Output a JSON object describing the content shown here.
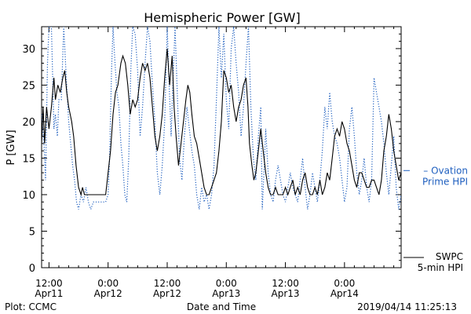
{
  "chart_data": {
    "type": "line",
    "title": "Hemispheric Power [GW]",
    "ylabel": "P [GW]",
    "xlabel": "Date and Time",
    "ylim": [
      0,
      33
    ],
    "yticks": [
      0,
      5,
      10,
      15,
      20,
      25,
      30
    ],
    "xticks": [
      {
        "t": 0,
        "time": "12:00",
        "date": "Apr11"
      },
      {
        "t": 12,
        "time": "0:00",
        "date": "Apr12"
      },
      {
        "t": 24,
        "time": "12:00",
        "date": "Apr12"
      },
      {
        "t": 36,
        "time": "0:00",
        "date": "Apr13"
      },
      {
        "t": 48,
        "time": "12:00",
        "date": "Apr13"
      },
      {
        "t": 60,
        "time": "0:00",
        "date": "Apr14"
      }
    ],
    "xlim": [
      -1.5,
      71.5
    ],
    "grid": false,
    "series": [
      {
        "name": "SWPC 5-min HPI",
        "name_lines": [
          "SWPC",
          "5-min HPI"
        ],
        "color": "#000000",
        "dash": "solid",
        "points": [
          [
            -1.5,
            17
          ],
          [
            -1.2,
            22
          ],
          [
            -0.9,
            17
          ],
          [
            -0.5,
            22
          ],
          [
            0,
            19
          ],
          [
            0.5,
            22
          ],
          [
            1,
            26
          ],
          [
            1.3,
            23
          ],
          [
            1.8,
            25
          ],
          [
            2.3,
            24
          ],
          [
            2.8,
            26
          ],
          [
            3.2,
            27
          ],
          [
            3.6,
            24
          ],
          [
            4,
            22
          ],
          [
            4.6,
            20
          ],
          [
            5,
            18
          ],
          [
            5.5,
            14
          ],
          [
            6,
            11
          ],
          [
            6.5,
            10
          ],
          [
            6.8,
            11
          ],
          [
            7.2,
            10
          ],
          [
            8,
            10
          ],
          [
            9,
            10
          ],
          [
            10,
            10
          ],
          [
            11,
            10
          ],
          [
            11.5,
            10
          ],
          [
            12,
            13
          ],
          [
            12.5,
            16
          ],
          [
            13,
            21
          ],
          [
            13.5,
            24
          ],
          [
            14,
            25
          ],
          [
            14.6,
            28
          ],
          [
            15,
            29
          ],
          [
            15.5,
            28
          ],
          [
            16,
            25
          ],
          [
            16.5,
            21
          ],
          [
            17,
            23
          ],
          [
            17.5,
            22
          ],
          [
            18,
            23
          ],
          [
            18.5,
            26
          ],
          [
            19,
            28
          ],
          [
            19.5,
            27
          ],
          [
            20,
            28
          ],
          [
            20.5,
            26
          ],
          [
            21,
            22
          ],
          [
            21.5,
            18
          ],
          [
            22,
            16
          ],
          [
            22.5,
            18
          ],
          [
            23,
            21
          ],
          [
            23.5,
            26
          ],
          [
            24,
            30
          ],
          [
            24.5,
            25
          ],
          [
            25,
            29
          ],
          [
            25.4,
            22
          ],
          [
            25.8,
            18
          ],
          [
            26.3,
            14
          ],
          [
            26.8,
            17
          ],
          [
            27.3,
            20
          ],
          [
            27.8,
            23
          ],
          [
            28.2,
            25
          ],
          [
            28.6,
            24
          ],
          [
            29,
            21
          ],
          [
            29.5,
            18
          ],
          [
            30,
            17
          ],
          [
            30.5,
            15
          ],
          [
            31,
            13
          ],
          [
            31.5,
            11
          ],
          [
            32,
            10
          ],
          [
            32.5,
            10
          ],
          [
            33,
            11
          ],
          [
            33.5,
            12
          ],
          [
            34,
            13
          ],
          [
            34.5,
            16
          ],
          [
            35,
            20
          ],
          [
            35.5,
            27
          ],
          [
            36,
            26
          ],
          [
            36.5,
            24
          ],
          [
            37,
            25
          ],
          [
            37.5,
            22
          ],
          [
            38,
            20
          ],
          [
            38.5,
            22
          ],
          [
            39,
            23
          ],
          [
            39.5,
            25
          ],
          [
            40,
            26
          ],
          [
            40.4,
            22
          ],
          [
            40.7,
            17
          ],
          [
            41.2,
            14
          ],
          [
            41.6,
            12
          ],
          [
            42,
            13
          ],
          [
            42.5,
            16
          ],
          [
            43,
            19
          ],
          [
            43.5,
            16
          ],
          [
            44,
            13
          ],
          [
            44.5,
            11
          ],
          [
            45,
            10
          ],
          [
            45.5,
            10
          ],
          [
            46,
            11
          ],
          [
            46.5,
            10
          ],
          [
            47,
            10
          ],
          [
            47.5,
            10
          ],
          [
            48,
            11
          ],
          [
            48.5,
            10
          ],
          [
            49,
            11
          ],
          [
            49.5,
            12
          ],
          [
            50,
            10
          ],
          [
            50.5,
            11
          ],
          [
            51,
            10
          ],
          [
            51.5,
            12
          ],
          [
            52,
            13
          ],
          [
            52.5,
            11
          ],
          [
            53,
            10
          ],
          [
            53.5,
            10
          ],
          [
            54,
            11
          ],
          [
            54.5,
            10
          ],
          [
            55,
            12
          ],
          [
            55.5,
            10
          ],
          [
            56,
            11
          ],
          [
            56.5,
            13
          ],
          [
            57,
            12
          ],
          [
            57.5,
            15
          ],
          [
            58,
            18
          ],
          [
            58.5,
            19
          ],
          [
            59,
            18
          ],
          [
            59.5,
            20
          ],
          [
            60,
            19
          ],
          [
            60.5,
            17
          ],
          [
            61,
            16
          ],
          [
            61.5,
            14
          ],
          [
            62,
            12
          ],
          [
            62.5,
            11
          ],
          [
            63,
            13
          ],
          [
            63.5,
            13
          ],
          [
            64,
            12
          ],
          [
            64.5,
            11
          ],
          [
            65,
            11
          ],
          [
            65.5,
            12
          ],
          [
            66,
            12
          ],
          [
            66.5,
            11
          ],
          [
            67,
            10
          ],
          [
            67.5,
            12
          ],
          [
            68,
            16
          ],
          [
            68.5,
            18
          ],
          [
            69,
            21
          ],
          [
            69.5,
            19
          ],
          [
            70,
            16
          ],
          [
            70.5,
            14
          ],
          [
            71,
            12
          ],
          [
            71.5,
            13
          ]
        ]
      },
      {
        "name": "Ovation Prime HPI",
        "name_lines": [
          "Ovation",
          "Prime HPI"
        ],
        "color": "#1f5fbf",
        "dash": "dotted",
        "points": [
          [
            -1.5,
            21
          ],
          [
            -1,
            17
          ],
          [
            -0.7,
            12
          ],
          [
            -0.3,
            28
          ],
          [
            0,
            33
          ],
          [
            0.5,
            33
          ],
          [
            1,
            19
          ],
          [
            1.3,
            21
          ],
          [
            1.7,
            18
          ],
          [
            2,
            23
          ],
          [
            2.5,
            23
          ],
          [
            3,
            33
          ],
          [
            3.5,
            26
          ],
          [
            4,
            20
          ],
          [
            4.4,
            17
          ],
          [
            4.8,
            14
          ],
          [
            5.2,
            12
          ],
          [
            5.6,
            9
          ],
          [
            6,
            8
          ],
          [
            6.5,
            10
          ],
          [
            7,
            9
          ],
          [
            7.5,
            11
          ],
          [
            8,
            9
          ],
          [
            8.5,
            8
          ],
          [
            9,
            9
          ],
          [
            9.5,
            9
          ],
          [
            10,
            9
          ],
          [
            10.5,
            9
          ],
          [
            11,
            9
          ],
          [
            11.5,
            9
          ],
          [
            12,
            10
          ],
          [
            12.3,
            15
          ],
          [
            12.7,
            27
          ],
          [
            13,
            33
          ],
          [
            13.4,
            28
          ],
          [
            13.8,
            24
          ],
          [
            14.2,
            22
          ],
          [
            14.6,
            17
          ],
          [
            15,
            14
          ],
          [
            15.4,
            10
          ],
          [
            15.8,
            9
          ],
          [
            16.2,
            15
          ],
          [
            16.6,
            27
          ],
          [
            17,
            33
          ],
          [
            17.5,
            32
          ],
          [
            18,
            27
          ],
          [
            18.5,
            18
          ],
          [
            19,
            22
          ],
          [
            19.5,
            28
          ],
          [
            20,
            33
          ],
          [
            20.5,
            31
          ],
          [
            21,
            25
          ],
          [
            21.5,
            20
          ],
          [
            22,
            13
          ],
          [
            22.5,
            10
          ],
          [
            23,
            14
          ],
          [
            23.5,
            20
          ],
          [
            24,
            33
          ],
          [
            24.4,
            25
          ],
          [
            24.8,
            18
          ],
          [
            25.2,
            26
          ],
          [
            25.6,
            33
          ],
          [
            26,
            25
          ],
          [
            26.5,
            15
          ],
          [
            27,
            12
          ],
          [
            27.5,
            18
          ],
          [
            28,
            22
          ],
          [
            28.5,
            19
          ],
          [
            29,
            16
          ],
          [
            29.5,
            14
          ],
          [
            30,
            10
          ],
          [
            30.5,
            8
          ],
          [
            31,
            11
          ],
          [
            31.5,
            9
          ],
          [
            32,
            10
          ],
          [
            32.5,
            8
          ],
          [
            33,
            10
          ],
          [
            33.5,
            14
          ],
          [
            34,
            23
          ],
          [
            34.5,
            33
          ],
          [
            35,
            26
          ],
          [
            35.5,
            32
          ],
          [
            36,
            23
          ],
          [
            36.5,
            19
          ],
          [
            37,
            30
          ],
          [
            37.5,
            33
          ],
          [
            38,
            28
          ],
          [
            38.5,
            24
          ],
          [
            39,
            18
          ],
          [
            39.5,
            22
          ],
          [
            40,
            28
          ],
          [
            40.5,
            33
          ],
          [
            41,
            22
          ],
          [
            41.5,
            15
          ],
          [
            42,
            12
          ],
          [
            42.5,
            18
          ],
          [
            43,
            22
          ],
          [
            43.3,
            8
          ],
          [
            43.7,
            14
          ],
          [
            44,
            19
          ],
          [
            44.5,
            13
          ],
          [
            45,
            10
          ],
          [
            45.5,
            9
          ],
          [
            46,
            12
          ],
          [
            46.5,
            14
          ],
          [
            47,
            12
          ],
          [
            47.5,
            10
          ],
          [
            48,
            9
          ],
          [
            48.5,
            11
          ],
          [
            49,
            13
          ],
          [
            49.5,
            11
          ],
          [
            50,
            10
          ],
          [
            50.5,
            9
          ],
          [
            51,
            12
          ],
          [
            51.5,
            15
          ],
          [
            52,
            11
          ],
          [
            52.5,
            8
          ],
          [
            53,
            10
          ],
          [
            53.5,
            13
          ],
          [
            54,
            11
          ],
          [
            54.5,
            9
          ],
          [
            55,
            12
          ],
          [
            55.5,
            16
          ],
          [
            56,
            22
          ],
          [
            56.5,
            19
          ],
          [
            57,
            24
          ],
          [
            57.5,
            20
          ],
          [
            58,
            18
          ],
          [
            58.5,
            17
          ],
          [
            59,
            15
          ],
          [
            59.5,
            12
          ],
          [
            60,
            9
          ],
          [
            60.5,
            11
          ],
          [
            61,
            19
          ],
          [
            61.5,
            22
          ],
          [
            62,
            18
          ],
          [
            62.5,
            13
          ],
          [
            63,
            10
          ],
          [
            63.5,
            12
          ],
          [
            64,
            15
          ],
          [
            64.5,
            11
          ],
          [
            65,
            9
          ],
          [
            65.5,
            12
          ],
          [
            66,
            26
          ],
          [
            66.5,
            24
          ],
          [
            67,
            22
          ],
          [
            67.5,
            20
          ],
          [
            68,
            17
          ],
          [
            68.5,
            13
          ],
          [
            69,
            10
          ],
          [
            69.5,
            14
          ],
          [
            70,
            18
          ],
          [
            70.5,
            11
          ],
          [
            71,
            8
          ],
          [
            71.5,
            10
          ]
        ]
      }
    ],
    "annotations": {
      "left": "Plot: CCMC",
      "right": "2019/04/14 11:25:13"
    }
  }
}
